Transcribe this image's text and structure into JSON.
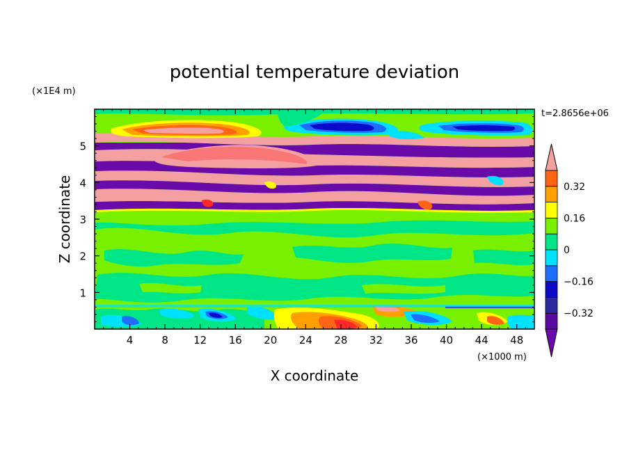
{
  "chart_data": {
    "type": "heatmap",
    "title": "potential temperature deviation",
    "xlabel": "X coordinate",
    "ylabel": "Z coordinate",
    "x_unit": "(×1000 m)",
    "y_unit": "(×1E4 m)",
    "time_label": "t=2.8656e+06",
    "xlim": [
      0,
      50
    ],
    "ylim": [
      0,
      6
    ],
    "x_ticks": [
      "4",
      "8",
      "12",
      "16",
      "20",
      "24",
      "28",
      "32",
      "36",
      "40",
      "44",
      "48"
    ],
    "x_tick_values": [
      4,
      8,
      12,
      16,
      20,
      24,
      28,
      32,
      36,
      40,
      44,
      48
    ],
    "y_ticks": [
      "1",
      "2",
      "3",
      "4",
      "5"
    ],
    "y_tick_values": [
      1,
      2,
      3,
      4,
      5
    ],
    "colorbar": {
      "levels": [
        -0.4,
        -0.32,
        -0.24,
        -0.16,
        -0.08,
        0,
        0.08,
        0.16,
        0.24,
        0.32,
        0.4
      ],
      "labels": [
        "0.32",
        "0.16",
        "0",
        "−0.16",
        "−0.32"
      ],
      "label_values": [
        0.32,
        0.16,
        0,
        -0.16,
        -0.32
      ],
      "colors": [
        "#5a0aa0",
        "#2a2a9e",
        "#0a0ac8",
        "#1e6eff",
        "#00e1ff",
        "#00e687",
        "#78f000",
        "#ffff00",
        "#ffa000",
        "#ff6414",
        "#ff2828"
      ],
      "over_color": "#f5a0a0",
      "under_color": "#6a0aa8"
    },
    "structure_summary": {
      "lower_layer_z_range": [
        0,
        0.6
      ],
      "middle_layer_z_range": [
        0.6,
        3.2
      ],
      "upper_banded_layer_z_range": [
        3.2,
        5.2
      ],
      "top_layer_z_range": [
        5.2,
        6.0
      ]
    }
  }
}
